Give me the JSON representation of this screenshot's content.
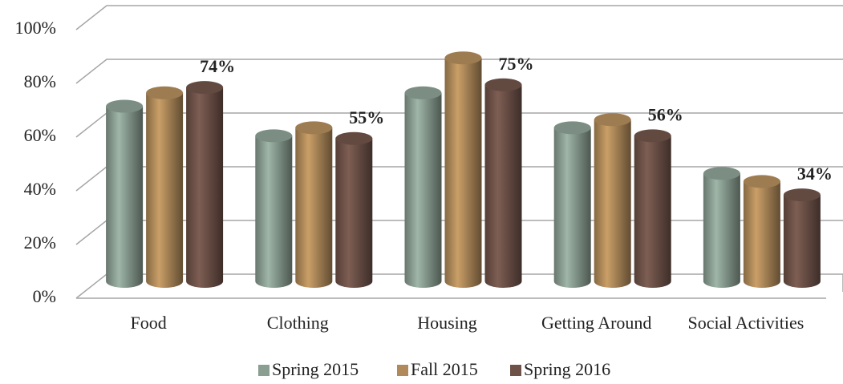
{
  "chart_data": {
    "type": "bar",
    "categories": [
      "Food",
      "Clothing",
      "Housing",
      "Getting Around",
      "Social Activities"
    ],
    "series": [
      {
        "name": "Spring 2015",
        "color": "#8a9e92",
        "values": [
          67,
          56,
          72,
          59,
          42
        ]
      },
      {
        "name": "Fall 2015",
        "color": "#b08a5a",
        "values": [
          72,
          59,
          85,
          62,
          39
        ]
      },
      {
        "name": "Spring 2016",
        "color": "#6e5248",
        "values": [
          74,
          55,
          75,
          56,
          34
        ],
        "value_labels": [
          "74%",
          "55%",
          "75%",
          "56%",
          "34%"
        ]
      }
    ],
    "ylim": [
      0,
      100
    ],
    "yticks": [
      {
        "value": 0,
        "label": "0%"
      },
      {
        "value": 20,
        "label": "20%"
      },
      {
        "value": 40,
        "label": "40%"
      },
      {
        "value": 60,
        "label": "60%"
      },
      {
        "value": 80,
        "label": "80%"
      },
      {
        "value": 100,
        "label": "100%"
      }
    ],
    "grid": true,
    "legend": "bottom"
  }
}
